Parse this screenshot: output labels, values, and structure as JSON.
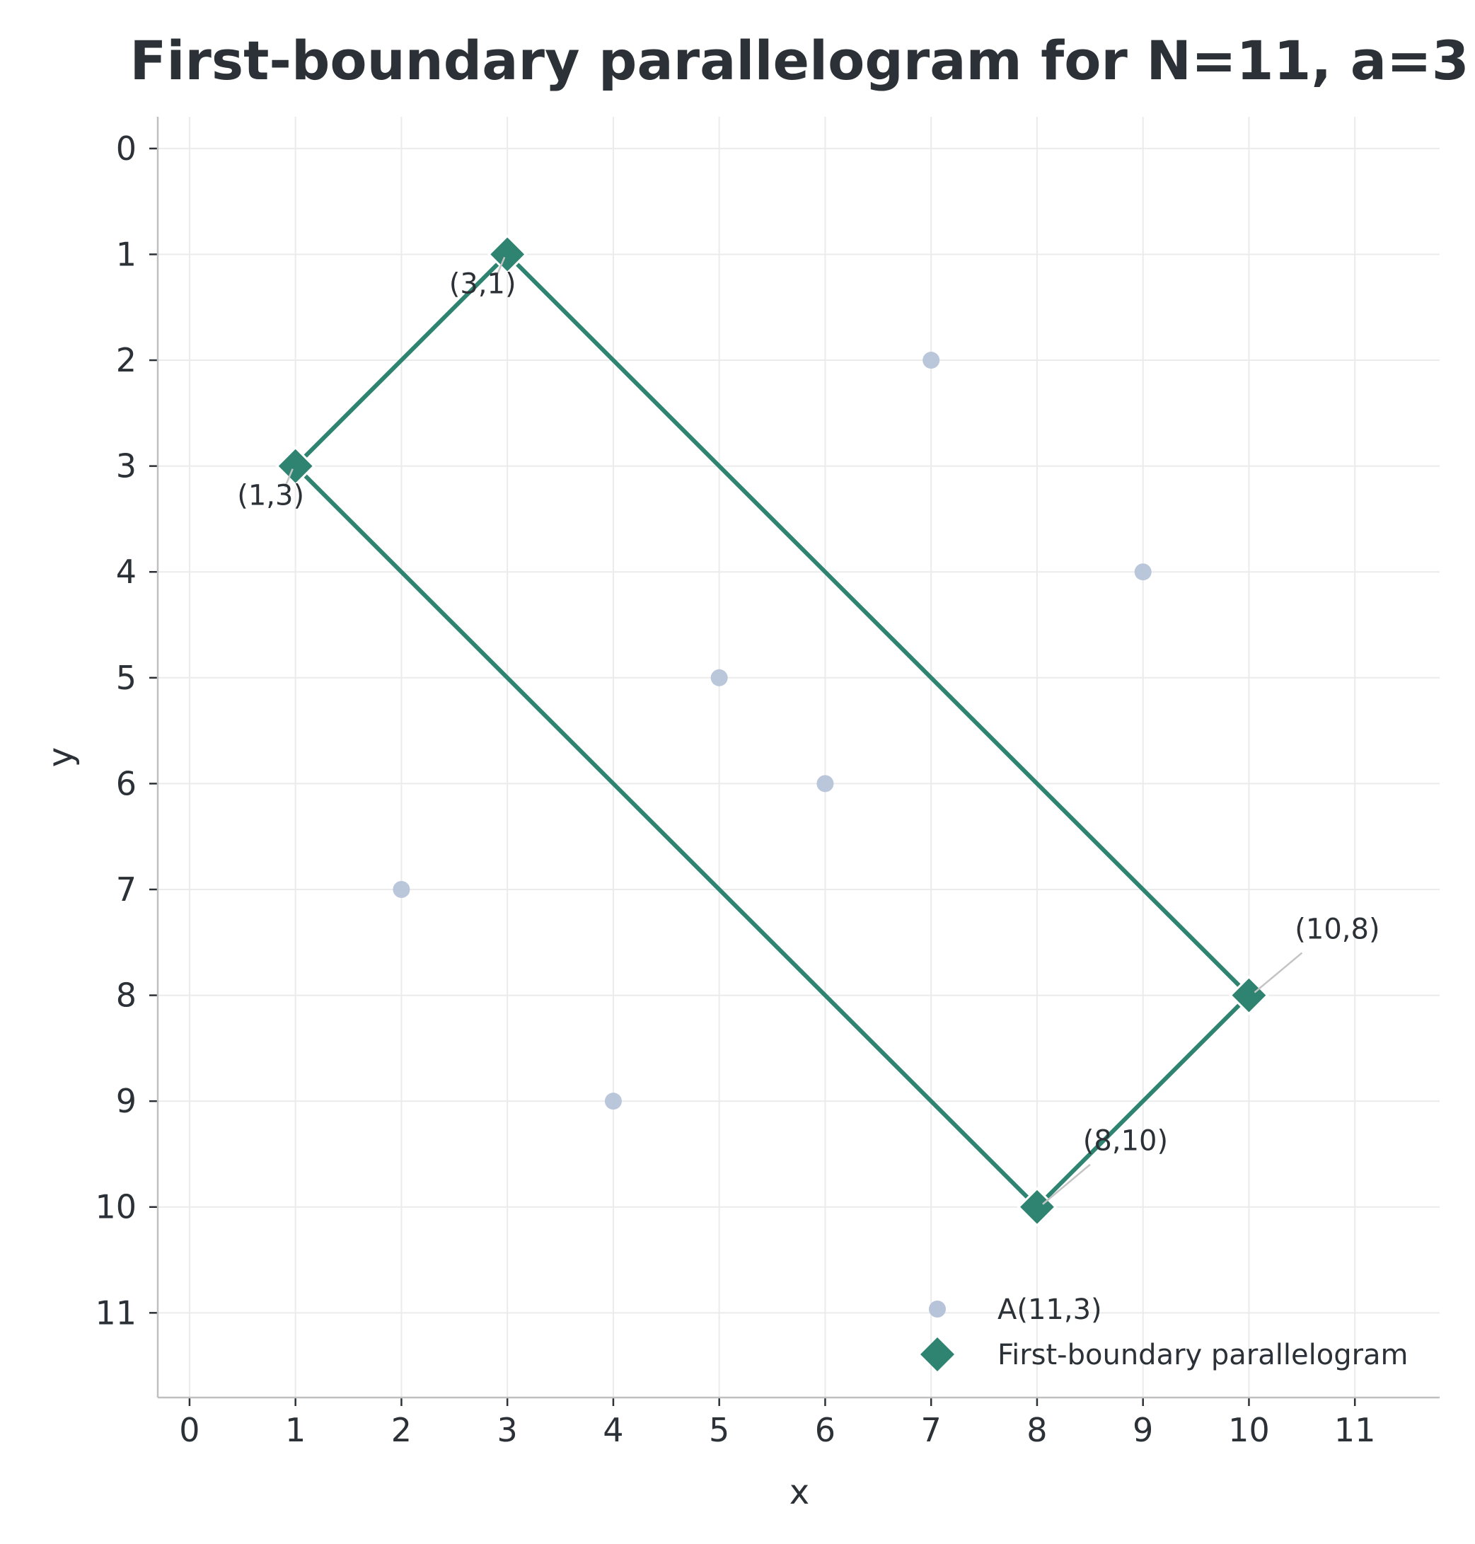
{
  "chart_data": {
    "type": "scatter",
    "title": "First-boundary parallelogram for N=11, a=3",
    "xlabel": "x",
    "ylabel": "y",
    "xlim": [
      -0.3,
      11.8
    ],
    "ylim": [
      -0.3,
      11.8
    ],
    "y_inverted": true,
    "grid": true,
    "xticks": [
      "0",
      "1",
      "2",
      "3",
      "4",
      "5",
      "6",
      "7",
      "8",
      "9",
      "10",
      "11"
    ],
    "yticks": [
      "0",
      "1",
      "2",
      "3",
      "4",
      "5",
      "6",
      "7",
      "8",
      "9",
      "10",
      "11"
    ],
    "series": [
      {
        "name": "A(11,3)",
        "marker": "circle",
        "color": "#b6c3d8",
        "points": [
          [
            1,
            3
          ],
          [
            2,
            7
          ],
          [
            3,
            1
          ],
          [
            4,
            9
          ],
          [
            5,
            5
          ],
          [
            6,
            6
          ],
          [
            7,
            2
          ],
          [
            8,
            10
          ],
          [
            9,
            4
          ],
          [
            10,
            8
          ]
        ]
      },
      {
        "name": "First-boundary parallelogram",
        "marker": "diamond",
        "color": "#2e8470",
        "closed": true,
        "points": [
          [
            1,
            3
          ],
          [
            3,
            1
          ],
          [
            10,
            8
          ],
          [
            8,
            10
          ]
        ]
      }
    ],
    "annotations": [
      {
        "text": "(1,3)",
        "x": 1,
        "y": 3
      },
      {
        "text": "(3,1)",
        "x": 3,
        "y": 1
      },
      {
        "text": "(10,8)",
        "x": 10,
        "y": 8
      },
      {
        "text": "(8,10)",
        "x": 8,
        "y": 10
      }
    ],
    "legend": {
      "placement": "lower-right"
    }
  }
}
